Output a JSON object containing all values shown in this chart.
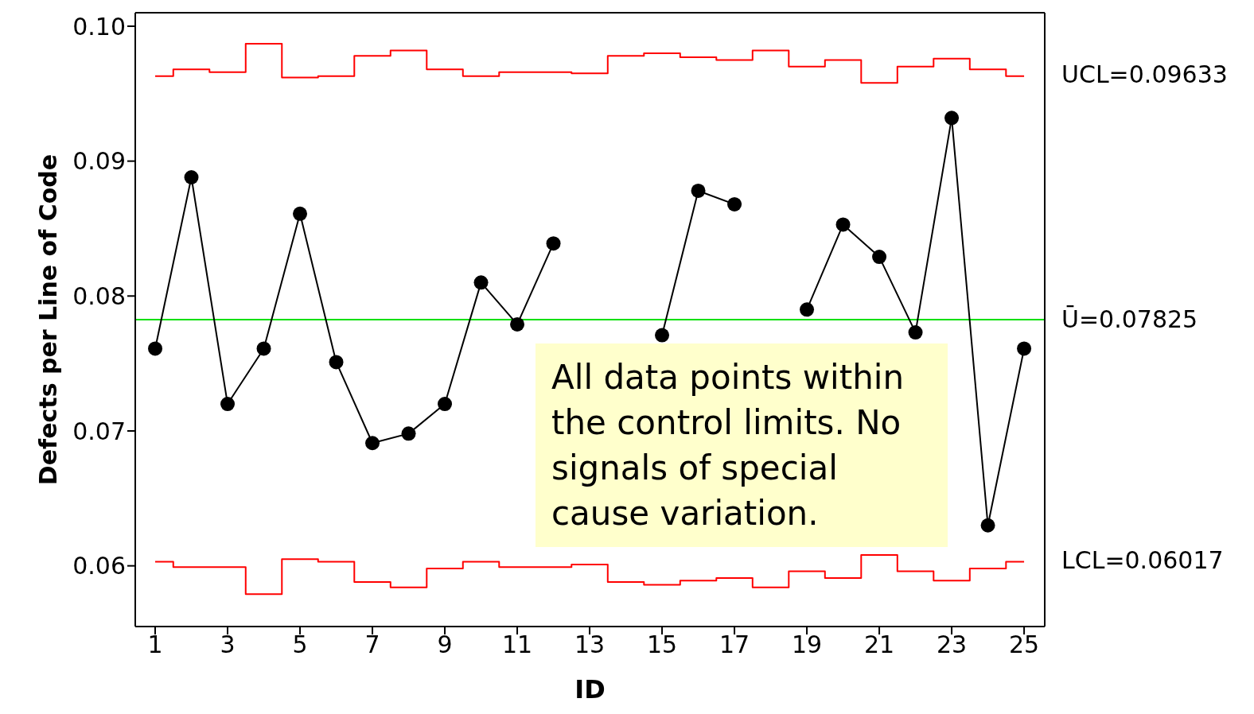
{
  "chart_data": {
    "type": "line",
    "xlabel": "ID",
    "ylabel": "Defects per Line of Code",
    "x": [
      1,
      2,
      3,
      4,
      5,
      6,
      7,
      8,
      9,
      10,
      11,
      12,
      13,
      14,
      15,
      16,
      17,
      18,
      19,
      20,
      21,
      22,
      23,
      24,
      25
    ],
    "xlim": [
      0.45,
      25.57
    ],
    "xticks": [
      1,
      3,
      5,
      7,
      9,
      11,
      13,
      15,
      17,
      19,
      21,
      23,
      25
    ],
    "ylim": [
      0.0555,
      0.101
    ],
    "yticks": [
      {
        "value": 0.06,
        "label": "0.06"
      },
      {
        "value": 0.07,
        "label": "0.07"
      },
      {
        "value": 0.08,
        "label": "0.08"
      },
      {
        "value": 0.09,
        "label": "0.09"
      },
      {
        "value": 0.1,
        "label": "0.10"
      }
    ],
    "series": [
      {
        "type": "line",
        "color": "#000000",
        "marker": "circle",
        "values": [
          0.0761,
          0.0888,
          0.072,
          0.0761,
          0.0861,
          0.0751,
          0.0691,
          0.0698,
          0.072,
          0.081,
          0.0779,
          0.0839,
          null,
          null,
          0.0771,
          0.0878,
          0.0868,
          null,
          0.079,
          0.0853,
          0.0829,
          0.0773,
          0.0932,
          0.063,
          0.0761
        ]
      },
      {
        "type": "step",
        "name": "UCL=0.09633",
        "color": "#ff0000",
        "values": [
          0.0963,
          0.0968,
          0.0966,
          0.0987,
          0.0962,
          0.0963,
          0.0978,
          0.0982,
          0.0968,
          0.0963,
          0.0966,
          0.0966,
          0.0965,
          0.0978,
          0.098,
          0.0977,
          0.0975,
          0.0982,
          0.097,
          0.0975,
          0.0958,
          0.097,
          0.0976,
          0.0968,
          0.0963
        ]
      },
      {
        "type": "step",
        "name": "LCL=0.06017",
        "color": "#ff0000",
        "values": [
          0.0603,
          0.0599,
          0.0599,
          0.0579,
          0.0605,
          0.0603,
          0.0588,
          0.0584,
          0.0598,
          0.0603,
          0.0599,
          0.0599,
          0.0601,
          0.0588,
          0.0586,
          0.0589,
          0.0591,
          0.0584,
          0.0596,
          0.0591,
          0.0608,
          0.0596,
          0.0589,
          0.0598,
          0.0603
        ]
      }
    ],
    "ref_lines": [
      {
        "axis": "y",
        "value": 0.07825,
        "label": "Ū=0.07825",
        "color": "#00e000"
      }
    ],
    "annotations": [
      "All data points within the control limits. No signals of special cause variation."
    ],
    "grid": false
  }
}
